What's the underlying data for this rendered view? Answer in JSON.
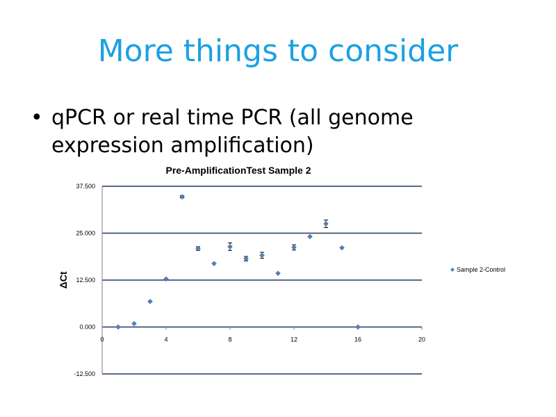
{
  "slide": {
    "title": "More things to consider",
    "bullets": [
      {
        "marker": "•",
        "text": "qPCR or real time PCR (all genome expression  amplification)"
      }
    ],
    "colors": {
      "title": "#1ba1e2",
      "series": "#4f81bd",
      "grid": "#1f3864",
      "axis": "#808080"
    }
  },
  "chart_data": {
    "type": "scatter",
    "title": "Pre-AmplificationTest Sample 2",
    "xlabel": "",
    "ylabel": "ΔCt",
    "xlim": [
      0,
      20
    ],
    "ylim": [
      -12.5,
      37.5
    ],
    "x_ticks": [
      0,
      4,
      8,
      12,
      16,
      20
    ],
    "x_tick_labels": [
      "0",
      "4",
      "8",
      "12",
      "16",
      "20"
    ],
    "y_ticks": [
      37.5,
      25,
      12.5,
      0,
      -12.5
    ],
    "y_tick_labels": [
      "37.500",
      "25.000",
      "12.500",
      "0.000",
      "-12.500"
    ],
    "grid": "horizontal",
    "legend": {
      "position": "right",
      "entries": [
        "Sample 2-Control"
      ]
    },
    "series": [
      {
        "name": "Sample 2-Control",
        "x": [
          1,
          2,
          3,
          4,
          5,
          6,
          7,
          8,
          9,
          10,
          11,
          12,
          13,
          14,
          15,
          16
        ],
        "y": [
          0,
          0.9,
          6.8,
          12.8,
          34.7,
          20.9,
          16.9,
          21.4,
          18.2,
          19.1,
          14.3,
          21.2,
          24.1,
          27.5,
          21.1,
          0
        ],
        "error": [
          0,
          0,
          0,
          0,
          0.3,
          0.5,
          0,
          1.0,
          0.6,
          0.8,
          0,
          0.7,
          0,
          1.0,
          0,
          0
        ]
      }
    ]
  }
}
